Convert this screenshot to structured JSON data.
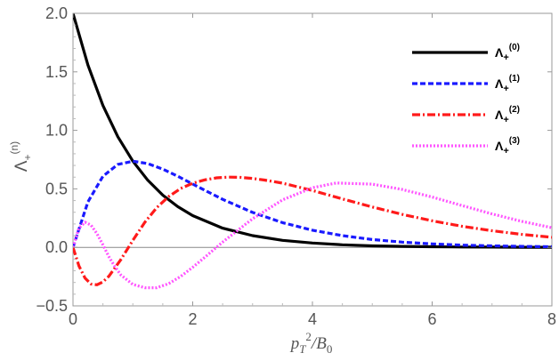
{
  "chart_data": {
    "type": "line",
    "xlabel_parts": {
      "p": "p",
      "sub_T": "T",
      "sup_2": "2",
      "slash_B": "/B",
      "sub_0": "0"
    },
    "ylabel_parts": {
      "base": "Λ",
      "sub": "+",
      "sup": "(n)"
    },
    "xlim": [
      0,
      8
    ],
    "ylim": [
      -0.5,
      2.0
    ],
    "xticks": [
      0,
      2,
      4,
      6,
      8
    ],
    "yticks": [
      -0.5,
      0.0,
      0.5,
      1.0,
      1.5,
      2.0
    ],
    "xtick_labels": [
      "0",
      "2",
      "4",
      "6",
      "8"
    ],
    "ytick_labels": [
      "−0.5",
      "0.0",
      "0.5",
      "1.0",
      "1.5",
      "2.0"
    ],
    "grid": false,
    "legend_position": "top-right",
    "series": [
      {
        "name": "Λ+(0)",
        "label_base": "Λ",
        "label_sub": "+",
        "label_sup": "(0)",
        "color": "#000000",
        "dash": "solid",
        "x": [
          0,
          0.25,
          0.5,
          0.75,
          1,
          1.25,
          1.5,
          1.75,
          2,
          2.5,
          3,
          3.5,
          4,
          4.5,
          5,
          5.5,
          6,
          6.5,
          7,
          7.5,
          8
        ],
        "y": [
          2.0,
          1.558,
          1.213,
          0.945,
          0.736,
          0.573,
          0.446,
          0.348,
          0.271,
          0.164,
          0.1,
          0.06,
          0.037,
          0.022,
          0.013,
          0.008,
          0.005,
          0.003,
          0.002,
          0.001,
          0.001
        ]
      },
      {
        "name": "Λ+(1)",
        "label_base": "Λ",
        "label_sub": "+",
        "label_sup": "(1)",
        "color": "#1a1aff",
        "dash": "dashed",
        "x": [
          0,
          0.25,
          0.5,
          0.75,
          1,
          1.25,
          1.5,
          1.75,
          2,
          2.5,
          3,
          3.5,
          4,
          4.5,
          5,
          5.5,
          6,
          6.5,
          7,
          7.5,
          8
        ],
        "y": [
          0.0,
          0.389,
          0.607,
          0.709,
          0.736,
          0.716,
          0.669,
          0.608,
          0.541,
          0.41,
          0.299,
          0.211,
          0.147,
          0.1,
          0.067,
          0.045,
          0.03,
          0.019,
          0.013,
          0.008,
          0.005
        ]
      },
      {
        "name": "Λ+(2)",
        "label_base": "Λ",
        "label_sub": "+",
        "label_sup": "(2)",
        "color": "#ff1a1a",
        "dash": "dashdot",
        "x": [
          0,
          0.1,
          0.2,
          0.3,
          0.4,
          0.5,
          0.6,
          0.8,
          1,
          1.2,
          1.4,
          1.6,
          1.8,
          2,
          2.2,
          2.4,
          2.6,
          2.8,
          3,
          3.2,
          3.5,
          4,
          4.5,
          5,
          5.5,
          6,
          6.5,
          7,
          7.5,
          8
        ],
        "y": [
          0.0,
          -0.159,
          -0.262,
          -0.313,
          -0.32,
          -0.295,
          -0.247,
          -0.104,
          0.061,
          0.214,
          0.34,
          0.435,
          0.504,
          0.548,
          0.577,
          0.594,
          0.6,
          0.598,
          0.589,
          0.575,
          0.549,
          0.486,
          0.414,
          0.345,
          0.282,
          0.227,
          0.18,
          0.142,
          0.111,
          0.086
        ]
      },
      {
        "name": "Λ+(3)",
        "label_base": "Λ",
        "label_sub": "+",
        "label_sup": "(3)",
        "color": "#ff55ff",
        "dash": "dotted",
        "x": [
          0,
          0.1,
          0.2,
          0.3,
          0.4,
          0.5,
          0.6,
          0.7,
          0.8,
          1,
          1.2,
          1.4,
          1.6,
          1.8,
          2,
          2.2,
          2.5,
          2.8,
          3,
          3.5,
          4,
          4.4,
          5,
          5.5,
          6,
          6.5,
          7,
          7.5,
          8
        ],
        "y": [
          0.0,
          0.165,
          0.215,
          0.19,
          0.118,
          0.022,
          -0.08,
          -0.166,
          -0.236,
          -0.317,
          -0.345,
          -0.345,
          -0.31,
          -0.248,
          -0.17,
          -0.085,
          0.045,
          0.165,
          0.245,
          0.406,
          0.51,
          0.55,
          0.54,
          0.495,
          0.43,
          0.357,
          0.286,
          0.222,
          0.168
        ]
      }
    ]
  }
}
